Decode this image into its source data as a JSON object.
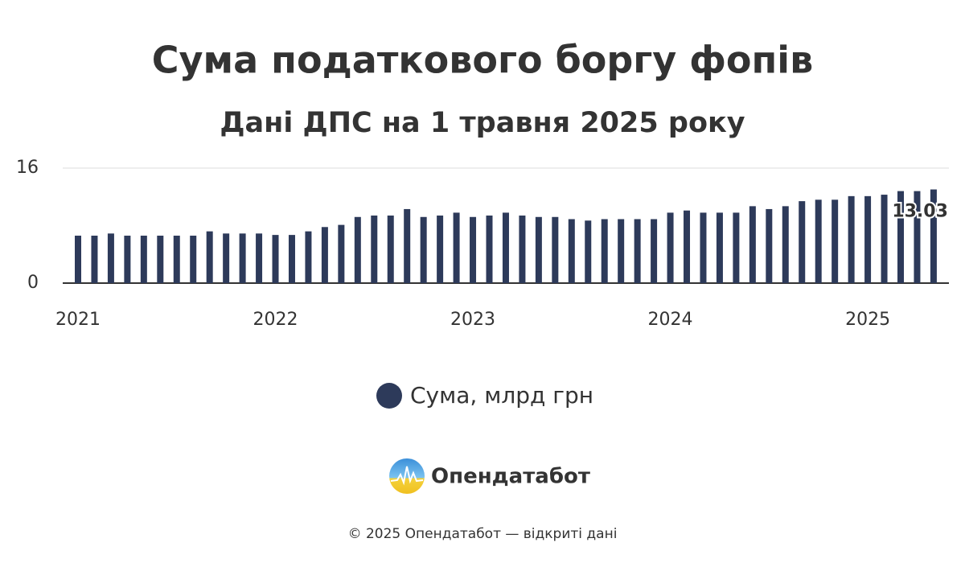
{
  "chart_data": {
    "type": "bar",
    "title": "Сума податкового боргу фопів",
    "subtitle": "Дані ДПС на 1 травня 2025 року",
    "categories": [
      "2021",
      null,
      null,
      null,
      null,
      null,
      null,
      null,
      null,
      null,
      null,
      null,
      "2022",
      null,
      null,
      null,
      null,
      null,
      null,
      null,
      null,
      null,
      null,
      null,
      "2023",
      null,
      null,
      null,
      null,
      null,
      null,
      null,
      null,
      null,
      null,
      null,
      "2024",
      null,
      null,
      null,
      null,
      null,
      null,
      null,
      null,
      null,
      null,
      null,
      "2025",
      null,
      null,
      null,
      null
    ],
    "series": [
      {
        "name": "Сума, млрд грн",
        "color": "#2d3a5a",
        "values": [
          6.6,
          6.6,
          6.9,
          6.6,
          6.6,
          6.6,
          6.6,
          6.6,
          7.2,
          6.9,
          6.9,
          6.9,
          6.7,
          6.7,
          7.2,
          7.8,
          8.1,
          9.2,
          9.4,
          9.4,
          10.3,
          9.2,
          9.4,
          9.8,
          9.2,
          9.4,
          9.8,
          9.4,
          9.2,
          9.2,
          8.9,
          8.7,
          8.9,
          8.9,
          8.9,
          8.9,
          9.8,
          10.1,
          9.8,
          9.8,
          9.8,
          10.7,
          10.3,
          10.7,
          11.4,
          11.6,
          11.6,
          12.1,
          12.1,
          12.3,
          12.8,
          12.8,
          13.03
        ],
        "value_labels": [
          null,
          null,
          null,
          null,
          null,
          null,
          null,
          null,
          null,
          null,
          null,
          null,
          null,
          null,
          null,
          null,
          null,
          null,
          null,
          null,
          null,
          null,
          null,
          null,
          null,
          null,
          null,
          null,
          null,
          null,
          null,
          null,
          null,
          null,
          null,
          null,
          null,
          null,
          null,
          null,
          null,
          null,
          null,
          null,
          null,
          null,
          null,
          null,
          null,
          null,
          null,
          null,
          "13.03"
        ]
      }
    ],
    "ylim": [
      0,
      16
    ],
    "yticks": [
      0,
      16
    ],
    "grid": true,
    "legend": "bottom"
  },
  "branding": {
    "logo": "Опендатабот",
    "footer": "© 2025 Опендатабот — відкриті дані"
  }
}
